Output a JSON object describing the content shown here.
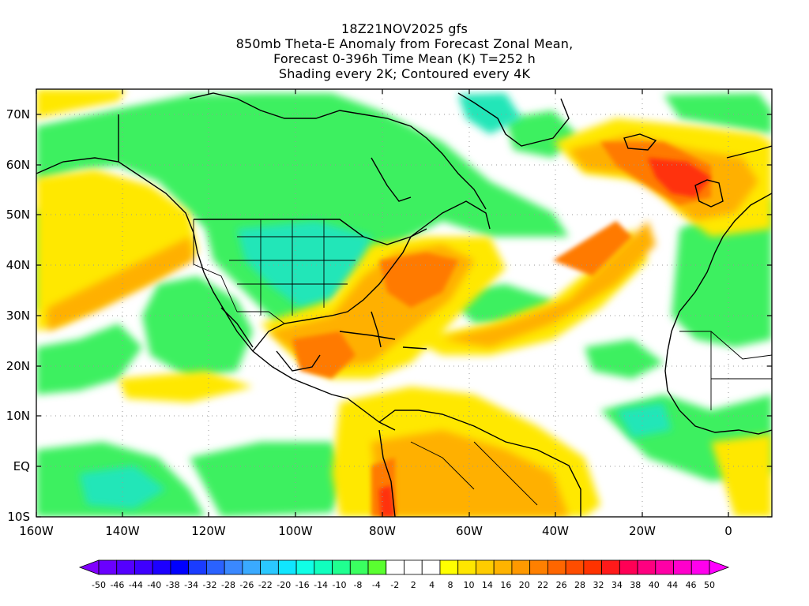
{
  "titles": {
    "line1": "18Z21NOV2025 gfs",
    "line2": "850mb Theta-E Anomaly from Forecast Zonal Mean,",
    "line3": "Forecast 0-396h Time Mean (K) T=252 h",
    "line4": "Shading every 2K; Contoured every 4K"
  },
  "map": {
    "lon_range": [
      -160,
      10
    ],
    "lat_range": [
      -10,
      75
    ],
    "lon_ticks": [
      "160W",
      "140W",
      "120W",
      "100W",
      "80W",
      "60W",
      "40W",
      "20W",
      "0"
    ],
    "lat_ticks": [
      "70N",
      "60N",
      "50N",
      "40N",
      "30N",
      "20N",
      "10N",
      "EQ",
      "10S"
    ]
  },
  "colorbar": {
    "colors": [
      "#8000ff",
      "#6a00ff",
      "#5400ff",
      "#3e00ff",
      "#1c00ff",
      "#0000ff",
      "#1a3cff",
      "#2a62ff",
      "#3a88ff",
      "#3aaaff",
      "#2ac8ff",
      "#10e6ff",
      "#10ffe6",
      "#10ffbe",
      "#20ff90",
      "#3aff60",
      "#5aff30",
      "#ffffff",
      "#ffffff",
      "#ffffff",
      "#ffff00",
      "#ffe600",
      "#ffcc00",
      "#ffb300",
      "#ff9900",
      "#ff8000",
      "#ff6600",
      "#ff4d00",
      "#ff3300",
      "#ff1a1a",
      "#ff0055",
      "#ff0080",
      "#ff00a6",
      "#ff00cc",
      "#ff00ee",
      "#ff00ff"
    ],
    "labels": [
      "-50",
      "-46",
      "-44",
      "-40",
      "-38",
      "-34",
      "-32",
      "-28",
      "-26",
      "-22",
      "-20",
      "-16",
      "-14",
      "-10",
      "-8",
      "-4",
      "-2",
      "2",
      "4",
      "8",
      "10",
      "14",
      "16",
      "20",
      "22",
      "26",
      "28",
      "32",
      "34",
      "38",
      "40",
      "44",
      "46",
      "50"
    ]
  }
}
